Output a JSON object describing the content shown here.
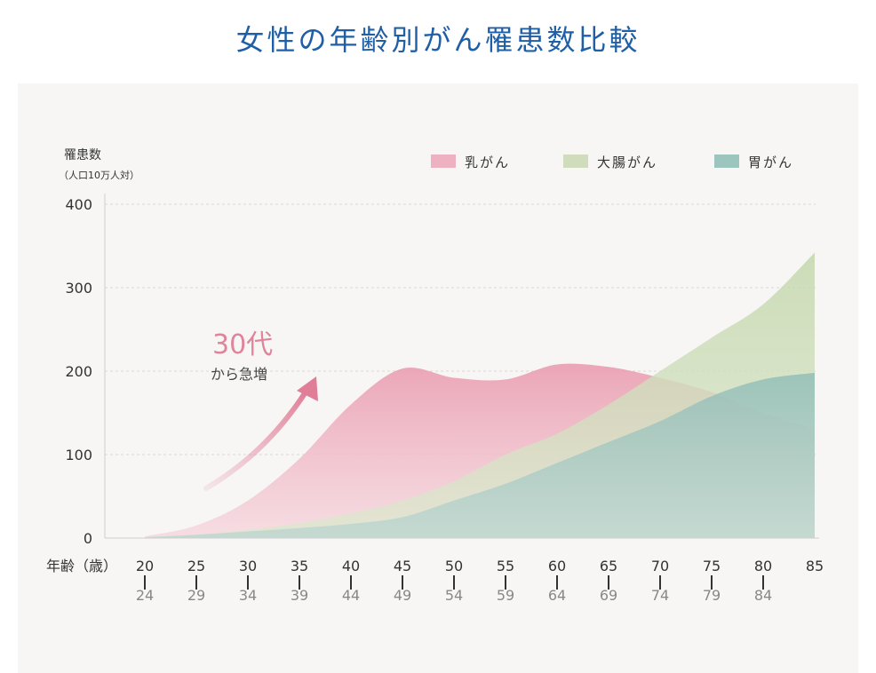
{
  "title": "女性の年齢別がん罹患数比較",
  "chart_data": {
    "type": "area",
    "ylabel": "罹患数",
    "yunit": "（人口10万人対）",
    "xlabel": "年齢（歳）",
    "ylim": [
      0,
      400
    ],
    "yticks": [
      0,
      100,
      200,
      300,
      400
    ],
    "grid": true,
    "legend_position": "top-right",
    "categories_start": [
      "20",
      "25",
      "30",
      "35",
      "40",
      "45",
      "50",
      "55",
      "60",
      "65",
      "70",
      "75",
      "80",
      "85"
    ],
    "categories_end": [
      "24",
      "29",
      "34",
      "39",
      "44",
      "49",
      "54",
      "59",
      "64",
      "69",
      "74",
      "79",
      "84",
      ""
    ],
    "x": [
      20,
      25,
      30,
      35,
      40,
      45,
      50,
      55,
      60,
      65,
      70,
      75,
      80,
      85
    ],
    "series": [
      {
        "name": "乳がん",
        "color": "#eba3b6",
        "values": [
          2,
          15,
          45,
          95,
          160,
          203,
          192,
          190,
          208,
          205,
          192,
          175,
          150,
          130
        ]
      },
      {
        "name": "大腸がん",
        "color": "#c8d9b3",
        "values": [
          1,
          4,
          10,
          18,
          30,
          45,
          68,
          100,
          125,
          160,
          200,
          240,
          280,
          342
        ]
      },
      {
        "name": "胃がん",
        "color": "#95c0bb",
        "values": [
          1,
          4,
          8,
          12,
          17,
          25,
          45,
          65,
          90,
          115,
          140,
          170,
          190,
          198
        ]
      }
    ],
    "annotation": {
      "big": "30代",
      "small": "から急増"
    }
  }
}
